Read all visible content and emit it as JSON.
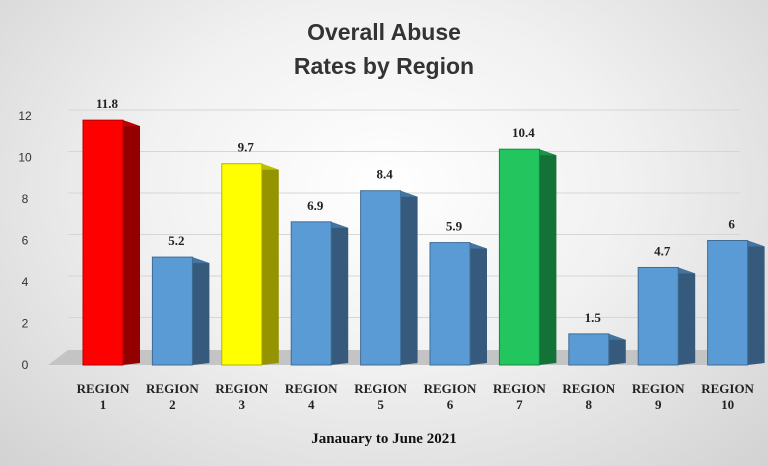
{
  "chart_data": {
    "type": "bar",
    "title": "Overall Abuse\nRates by Region",
    "title_lines": [
      "Overall Abuse",
      "Rates by Region"
    ],
    "xlabel": "Janauary to June 2021",
    "ylabel": "",
    "ylim": [
      0,
      12
    ],
    "yticks": [
      "0",
      "2",
      "4",
      "6",
      "8",
      "10",
      "12"
    ],
    "grid": true,
    "categories": [
      [
        "REGION",
        "1"
      ],
      [
        "REGION",
        "2"
      ],
      [
        "REGION",
        "3"
      ],
      [
        "REGION",
        "4"
      ],
      [
        "REGION",
        "5"
      ],
      [
        "REGION",
        "6"
      ],
      [
        "REGION",
        "7"
      ],
      [
        "REGION",
        "8"
      ],
      [
        "REGION",
        "9"
      ],
      [
        "REGION",
        "10"
      ]
    ],
    "values": [
      11.8,
      5.2,
      9.7,
      6.9,
      8.4,
      5.9,
      10.4,
      1.5,
      4.7,
      6
    ],
    "data_labels": [
      "11.8",
      "5.2",
      "9.7",
      "6.9",
      "8.4",
      "5.9",
      "10.4",
      "1.5",
      "4.7",
      "6"
    ],
    "colors": [
      "#ff0000",
      "#5b9bd5",
      "#ffff00",
      "#5b9bd5",
      "#5b9bd5",
      "#5b9bd5",
      "#22c55e",
      "#5b9bd5",
      "#5b9bd5",
      "#5b9bd5"
    ]
  }
}
